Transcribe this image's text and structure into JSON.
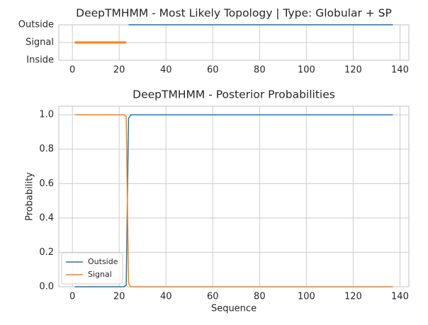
{
  "chart_data": [
    {
      "type": "line",
      "title": "DeepTMHMM - Most Likely Topology | Type: Globular + SP",
      "xlim": [
        -5.8,
        143.8
      ],
      "xticks": [
        0,
        20,
        40,
        60,
        80,
        100,
        120,
        140
      ],
      "ylim": [
        0,
        2
      ],
      "yticks": [
        {
          "value": 0,
          "label": "Inside"
        },
        {
          "value": 1,
          "label": "Signal"
        },
        {
          "value": 2,
          "label": "Outside"
        }
      ],
      "grid": true,
      "series": [
        {
          "color": "#1f77b4",
          "x": [
            24,
            137
          ],
          "values": [
            2,
            2
          ]
        },
        {
          "color": "#ff7f0e",
          "x": [
            1,
            23
          ],
          "values": [
            1,
            1
          ]
        }
      ]
    },
    {
      "type": "line",
      "title": "DeepTMHMM - Posterior Probabilities",
      "xlabel": "Sequence",
      "ylabel": "Probability",
      "xlim": [
        -5.8,
        143.8
      ],
      "xticks": [
        0,
        20,
        40,
        60,
        80,
        100,
        120,
        140
      ],
      "ylim": [
        0,
        1.05
      ],
      "yticks": [
        {
          "value": 0,
          "label": "0.0"
        },
        0.2,
        0.4,
        0.6,
        0.8,
        {
          "value": 1,
          "label": "1.0"
        }
      ],
      "grid": true,
      "legend": "lower left",
      "series": [
        {
          "name": "Outside",
          "color": "#1f77b4",
          "x": [
            1,
            22,
            23,
            24,
            25,
            137
          ],
          "values": [
            0,
            0,
            0.01,
            0.98,
            1,
            1
          ]
        },
        {
          "name": "Signal",
          "color": "#ff7f0e",
          "x": [
            1,
            22,
            23,
            24,
            25,
            137
          ],
          "values": [
            1,
            1,
            0.99,
            0.02,
            0,
            0
          ]
        }
      ]
    }
  ]
}
